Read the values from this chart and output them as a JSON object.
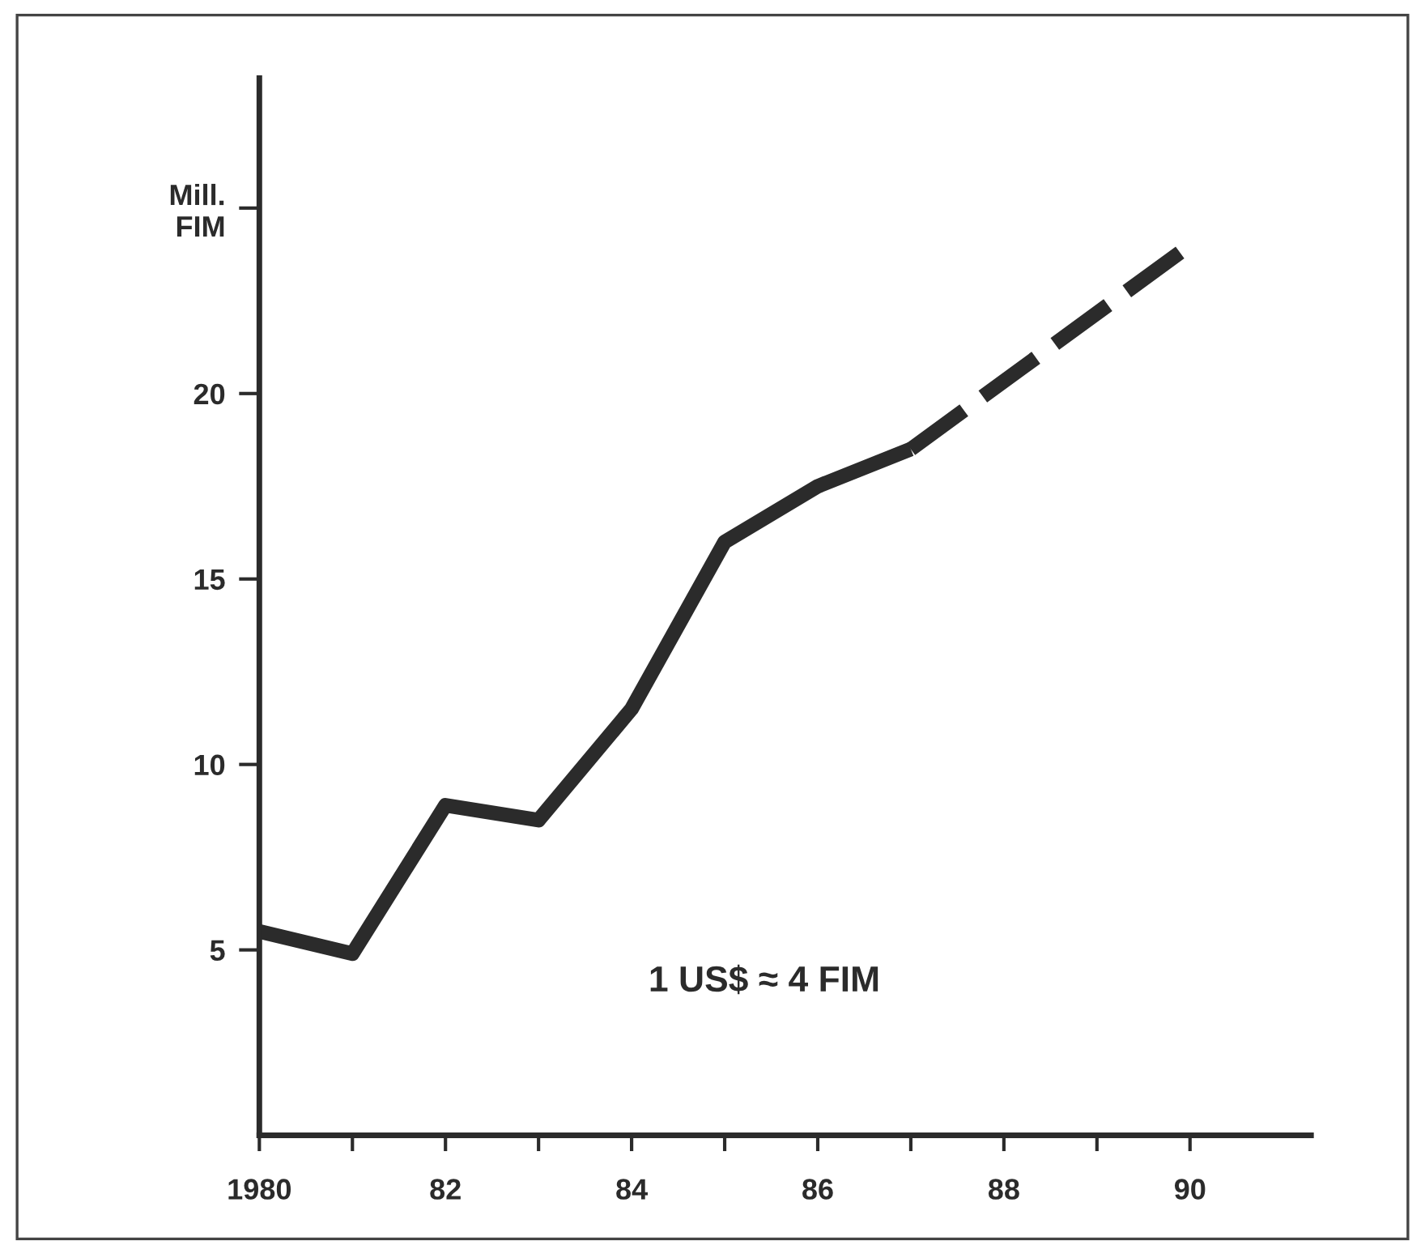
{
  "chart_data": {
    "type": "line",
    "series": [
      {
        "color": "#2b2b2b",
        "x": [
          1980,
          1981,
          1982,
          1983,
          1984,
          1985,
          1986,
          1987
        ],
        "values": [
          5.5,
          4.9,
          8.9,
          8.5,
          11.5,
          16.0,
          17.5,
          18.5
        ],
        "line_style": "solid"
      },
      {
        "color": "#2b2b2b",
        "x": [
          1987,
          1990
        ],
        "values": [
          18.5,
          24
        ],
        "line_style": "dashed"
      }
    ],
    "xlim": [
      1980,
      1991.3
    ],
    "ylim": [
      0,
      28.5
    ],
    "xticks": [
      {
        "value": 1980,
        "label": "1980"
      },
      {
        "value": 1981,
        "label": null
      },
      {
        "value": 1982,
        "label": "82"
      },
      {
        "value": 1983,
        "label": null
      },
      {
        "value": 1984,
        "label": "84"
      },
      {
        "value": 1985,
        "label": null
      },
      {
        "value": 1986,
        "label": "86"
      },
      {
        "value": 1987,
        "label": null
      },
      {
        "value": 1988,
        "label": "88"
      },
      {
        "value": 1989,
        "label": null
      },
      {
        "value": 1990,
        "label": "90"
      }
    ],
    "yticks": [
      5,
      10,
      15,
      20,
      {
        "value": 25,
        "label": "Mill.\nFIM"
      }
    ],
    "annotations": [
      "1 US$ ≈ 4 FIM"
    ],
    "grid": false,
    "legend": false,
    "marker": "none"
  }
}
